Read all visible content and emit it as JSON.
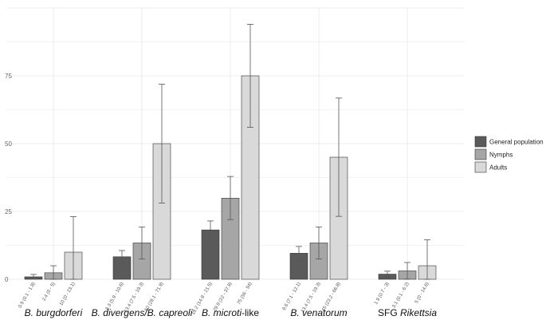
{
  "chart_data": {
    "type": "bar",
    "title": "",
    "xlabel": "",
    "ylabel": "",
    "ylim": [
      0,
      100
    ],
    "yticks": [
      0,
      25,
      50,
      75
    ],
    "grid": true,
    "legend_position": "right",
    "colors": {
      "General population": "#5a5a5a",
      "Nymphs": "#a6a6a6",
      "Adults": "#d9d9d9",
      "grid": "#e6e6e6",
      "bar_stroke": "#333333"
    },
    "categories": [
      {
        "prefix": "",
        "italic": "B. burgdorferi",
        "suffix": ""
      },
      {
        "prefix": "",
        "italic": "B. divergens/B. capreoli",
        "suffix": ""
      },
      {
        "prefix": "",
        "italic": "B. microti",
        "suffix": "-like"
      },
      {
        "prefix": "",
        "italic": "B. venatorum",
        "suffix": ""
      },
      {
        "prefix": "SFG ",
        "italic": "Rikettsia",
        "suffix": ""
      }
    ],
    "series": [
      {
        "name": "General population",
        "values": [
          0.9,
          8.3,
          18.2,
          9.6,
          1.9
        ],
        "ci_low": [
          0.1,
          5.9,
          14.9,
          7.1,
          0.7
        ],
        "ci_high": [
          1.8,
          10.6,
          21.5,
          12.1,
          3
        ],
        "labels": [
          "0.9 (0.1 - 1.8)",
          "8.3 (5.9 - 10.6)",
          "18.2 (14.9 - 21.5)",
          "9.6 (7.1 - 12.1)",
          "1.9 (0.7 - 3)"
        ]
      },
      {
        "name": "Nymphs",
        "values": [
          2.4,
          13.4,
          29.9,
          13.4,
          3.1
        ],
        "ci_low": [
          0,
          7.5,
          22,
          7.5,
          0.1
        ],
        "ci_high": [
          5,
          19.3,
          37.9,
          19.3,
          6.2
        ],
        "labels": [
          "2.4 (0 - 5)",
          "13.4 (7.5 - 19.3)",
          "29.9 (22 - 37.9)",
          "13.4 (7.5 - 19.3)",
          "3.1 (0.1 - 6.2)"
        ]
      },
      {
        "name": "Adults",
        "values": [
          10,
          50,
          75,
          45,
          5
        ],
        "ci_low": [
          0,
          28.1,
          56,
          23.2,
          0
        ],
        "ci_high": [
          23.1,
          71.9,
          94,
          66.8,
          14.6
        ],
        "labels": [
          "10 (0 - 23.1)",
          "50 (28.1 - 71.9)",
          "75 (56 - 94)",
          "45 (23.2 - 66.8)",
          "5 (0 - 14.6)"
        ]
      }
    ]
  }
}
